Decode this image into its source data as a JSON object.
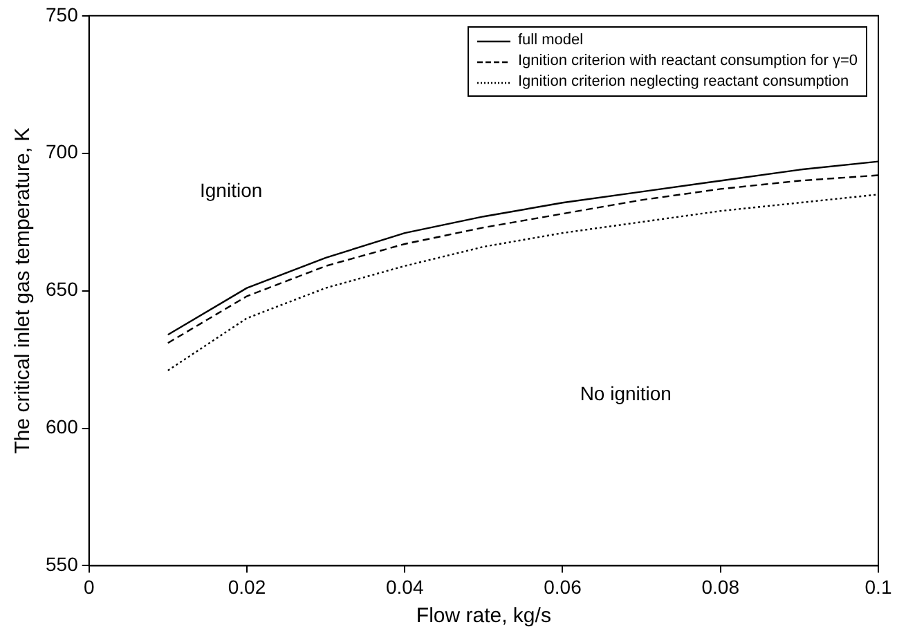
{
  "chart_data": {
    "type": "line",
    "xlabel": "Flow rate, kg/s",
    "ylabel": "The critical inlet gas temperature, K",
    "x": [
      0.01,
      0.02,
      0.03,
      0.04,
      0.05,
      0.06,
      0.07,
      0.08,
      0.09,
      0.1
    ],
    "series": [
      {
        "name": "full model",
        "color": "#000000",
        "line_style": "solid",
        "values": [
          634,
          651,
          662,
          671,
          677,
          682,
          686,
          690,
          694,
          697
        ]
      },
      {
        "name": "Ignition criterion with reactant consumption for γ=0",
        "color": "#000000",
        "line_style": "dashed",
        "values": [
          631,
          648,
          659,
          667,
          673,
          678,
          683,
          687,
          690,
          692
        ]
      },
      {
        "name": "Ignition criterion neglecting reactant consumption",
        "color": "#000000",
        "line_style": "dotted",
        "values": [
          621,
          640,
          651,
          659,
          666,
          671,
          675,
          679,
          682,
          685
        ]
      }
    ],
    "xlim": [
      0,
      0.1
    ],
    "xticks": [
      0,
      0.02,
      0.04,
      0.06,
      0.08,
      0.1
    ],
    "ylim": [
      550,
      750
    ],
    "yticks": [
      550,
      600,
      650,
      700,
      750
    ],
    "grid": false,
    "legend": "top right",
    "marker": "none",
    "annotations": [
      "Ignition",
      "No ignition"
    ]
  }
}
